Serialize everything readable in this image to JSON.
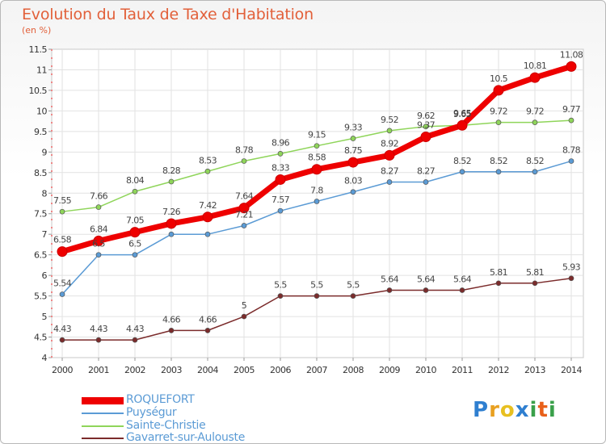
{
  "title": "Evolution du Taux de Taxe d'Habitation",
  "unit": "(en %)",
  "brand": {
    "text": "Proxiti",
    "letters": [
      "P",
      "r",
      "o",
      "x",
      "i",
      "t",
      "i"
    ],
    "colors": [
      "#2f7fd0",
      "#e8a020",
      "#e8c020",
      "#2f7fd0",
      "#3aa04a",
      "#e8601a",
      "#3aa04a"
    ]
  },
  "chart_data": {
    "type": "line",
    "title": "Evolution du Taux de Taxe d'Habitation",
    "ylabel": "(en %)",
    "xlabel": "",
    "x": [
      "2000",
      "2001",
      "2002",
      "2003",
      "2004",
      "2005",
      "2006",
      "2007",
      "2008",
      "2009",
      "2010",
      "2011",
      "2012",
      "2013",
      "2014"
    ],
    "ylim": [
      4,
      11.5
    ],
    "yticks": [
      "4",
      "4.5",
      "5",
      "5.5",
      "6",
      "6.5",
      "7",
      "7.5",
      "8",
      "8.5",
      "9",
      "9.5",
      "10",
      "10.5",
      "11",
      "11.5"
    ],
    "grid": true,
    "legend_position": "bottom-left",
    "series": [
      {
        "name": "ROQUEFORT",
        "color": "#ee0000",
        "values": [
          6.58,
          6.84,
          7.05,
          7.26,
          7.42,
          7.64,
          8.33,
          8.58,
          8.75,
          8.92,
          9.37,
          9.65,
          10.5,
          10.81,
          11.08
        ],
        "labels": [
          "6.58",
          "6.84",
          "7.05",
          "7.26",
          "7.42",
          "7.64",
          "8.33",
          "8.58",
          "8.75",
          "8.92",
          "9.37",
          "9.65",
          "10.5",
          "10.81",
          "11.08"
        ]
      },
      {
        "name": "Puységur",
        "color": "#5b9bd5",
        "values": [
          5.54,
          6.5,
          6.5,
          7,
          7,
          7.21,
          7.57,
          7.8,
          8.03,
          8.27,
          8.27,
          8.52,
          8.52,
          8.52,
          8.78
        ],
        "labels": [
          "5.54",
          "6.5",
          "6.5",
          "",
          "",
          "7.21",
          "7.57",
          "7.8",
          "8.03",
          "8.27",
          "8.27",
          "8.52",
          "8.52",
          "8.52",
          "8.78"
        ]
      },
      {
        "name": "Sainte-Christie",
        "color": "#8fd55a",
        "values": [
          7.55,
          7.66,
          8.04,
          8.28,
          8.53,
          8.78,
          8.96,
          9.15,
          9.33,
          9.52,
          9.62,
          9.65,
          9.72,
          9.72,
          9.77
        ],
        "labels": [
          "7.55",
          "7.66",
          "8.04",
          "8.28",
          "8.53",
          "8.78",
          "8.96",
          "9.15",
          "9.33",
          "9.52",
          "9.62",
          "9.65",
          "9.72",
          "9.72",
          "9.77"
        ]
      },
      {
        "name": "Gavarret-sur-Aulouste",
        "color": "#7b2b2b",
        "values": [
          4.43,
          4.43,
          4.43,
          4.66,
          4.66,
          5,
          5.5,
          5.5,
          5.5,
          5.64,
          5.64,
          5.64,
          5.81,
          5.81,
          5.93
        ],
        "labels": [
          "4.43",
          "4.43",
          "4.43",
          "4.66",
          "4.66",
          "5",
          "5.5",
          "5.5",
          "5.5",
          "5.64",
          "5.64",
          "5.64",
          "5.81",
          "5.81",
          "5.93"
        ]
      }
    ]
  }
}
